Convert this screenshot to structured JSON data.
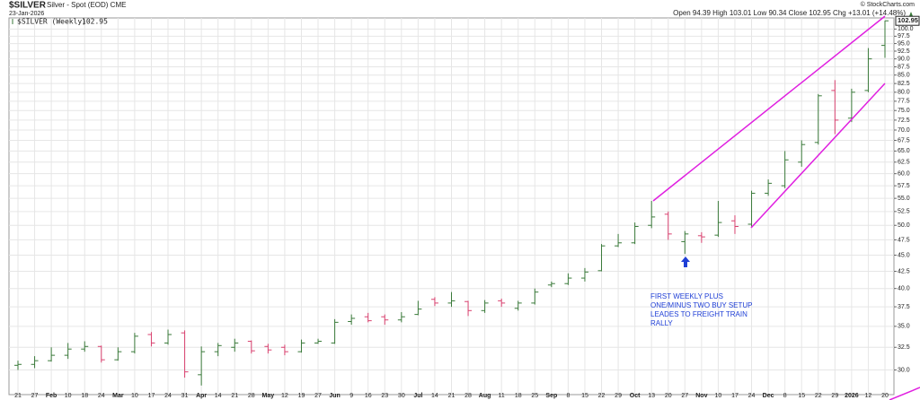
{
  "chart_data": {
    "type": "ohlc",
    "title": "$SILVER",
    "subtitle": "Silver - Spot (EOD) CME",
    "date": "23-Jan-2026",
    "credit": "© StockCharts.com",
    "quote": "Open 94.39 High 103.01 Low 90.34 Close 102.95 Chg +13.01 (+14.48%)",
    "last_label": "102.95",
    "annotation": [
      "FIRST WEEKLY PLUS",
      "ONE/MINUS TWO BUY SETUP",
      "LEADES TO FREIGHT TRAIN",
      "RALLY"
    ],
    "categories": [
      "21",
      "27",
      "Feb",
      "10",
      "18",
      "24",
      "Mar",
      "10",
      "17",
      "24",
      "31",
      "Apr",
      "14",
      "21",
      "28",
      "May",
      "12",
      "19",
      "27",
      "Jun",
      "9",
      "16",
      "23",
      "30",
      "Jul",
      "14",
      "21",
      "28",
      "Aug",
      "11",
      "18",
      "25",
      "Sep",
      "8",
      "15",
      "22",
      "29",
      "Oct",
      "13",
      "20",
      "27",
      "Nov",
      "10",
      "17",
      "24",
      "Dec",
      "8",
      "15",
      "22",
      "29",
      "2026",
      "12",
      "20"
    ],
    "series": [
      {
        "name": "$SILVER (Weekly)",
        "up_color": "#3a7a3a",
        "down_color": "#d9416f",
        "open": [
          30.5,
          30.6,
          31.0,
          31.6,
          32.3,
          32.6,
          31.1,
          32.0,
          34.0,
          33.0,
          34.2,
          29.5,
          32.0,
          32.5,
          33.2,
          32.6,
          32.5,
          32.0,
          33.0,
          33.0,
          35.6,
          36.2,
          36.2,
          35.8,
          36.5,
          38.5,
          38.0,
          38.2,
          37.0,
          38.3,
          37.3,
          38.0,
          40.5,
          40.7,
          41.5,
          42.6,
          46.5,
          47.0,
          50.0,
          52.0,
          47.2,
          48.2,
          48.3,
          50.8,
          50.2,
          56.0,
          57.5,
          62.5,
          67.0,
          80.5,
          73.0,
          80.5,
          94.39
        ],
        "high": [
          31.0,
          31.5,
          32.5,
          33.0,
          33.2,
          32.7,
          32.5,
          34.2,
          34.3,
          34.6,
          34.5,
          32.6,
          33.0,
          33.5,
          33.3,
          32.9,
          32.8,
          33.4,
          33.5,
          35.9,
          36.5,
          36.7,
          36.5,
          36.8,
          38.3,
          38.8,
          39.5,
          38.3,
          38.4,
          38.6,
          38.3,
          40.0,
          41.0,
          42.2,
          43.0,
          46.8,
          48.5,
          50.5,
          54.5,
          52.5,
          49.0,
          48.8,
          54.5,
          51.8,
          56.5,
          58.8,
          65.0,
          67.5,
          79.5,
          83.5,
          81.0,
          93.5,
          103.01
        ],
        "low": [
          30.0,
          30.2,
          30.9,
          31.2,
          32.0,
          30.8,
          31.0,
          31.8,
          32.6,
          32.8,
          29.2,
          28.4,
          31.5,
          32.0,
          31.8,
          31.8,
          31.6,
          31.9,
          32.9,
          32.9,
          35.2,
          35.5,
          35.2,
          35.5,
          36.4,
          37.6,
          37.5,
          36.3,
          36.7,
          37.5,
          37.0,
          37.8,
          40.2,
          40.5,
          41.0,
          42.5,
          46.3,
          46.8,
          49.5,
          47.5,
          45.2,
          47.0,
          48.0,
          48.5,
          49.8,
          55.5,
          57.0,
          61.5,
          66.5,
          69.0,
          72.0,
          80.0,
          90.34
        ],
        "close": [
          30.6,
          31.0,
          31.6,
          32.3,
          32.6,
          31.1,
          32.0,
          33.8,
          33.0,
          34.0,
          29.8,
          32.0,
          32.7,
          33.0,
          32.1,
          32.2,
          32.0,
          33.0,
          33.2,
          35.5,
          36.0,
          35.7,
          35.8,
          36.2,
          37.2,
          38.0,
          38.3,
          37.0,
          38.0,
          38.0,
          38.0,
          39.5,
          40.7,
          41.5,
          42.4,
          46.5,
          47.0,
          49.8,
          51.5,
          48.5,
          48.5,
          48.0,
          50.5,
          49.8,
          56.0,
          58.0,
          63.0,
          66.5,
          79.0,
          72.5,
          80.0,
          90.0,
          102.95
        ]
      }
    ],
    "log_y": true,
    "grid": true,
    "ylim": [
      27.5,
      104
    ],
    "yticks": [
      {
        "value": 30,
        "label": "30.0"
      },
      {
        "value": 32.5,
        "label": "32.5"
      },
      {
        "value": 35,
        "label": "35.0"
      },
      {
        "value": 37.5,
        "label": "37.5"
      },
      {
        "value": 40,
        "label": "40.0"
      },
      {
        "value": 42.5,
        "label": "42.5"
      },
      {
        "value": 45,
        "label": "45.0"
      },
      {
        "value": 47.5,
        "label": "47.5"
      },
      {
        "value": 50,
        "label": "50.0"
      },
      {
        "value": 52.5,
        "label": "52.5"
      },
      {
        "value": 55,
        "label": "55.0"
      },
      {
        "value": 57.5,
        "label": "57.5"
      },
      {
        "value": 60,
        "label": "60.0"
      },
      {
        "value": 62.5,
        "label": "62.5"
      },
      {
        "value": 65,
        "label": "65.0"
      },
      {
        "value": 67.5,
        "label": "67.5"
      },
      {
        "value": 70,
        "label": "70.0"
      },
      {
        "value": 72.5,
        "label": "72.5"
      },
      {
        "value": 75,
        "label": "75.0"
      },
      {
        "value": 77.5,
        "label": "77.5"
      },
      {
        "value": 80,
        "label": "80.0"
      },
      {
        "value": 82.5,
        "label": "82.5"
      },
      {
        "value": 85,
        "label": "85.0"
      },
      {
        "value": 87.5,
        "label": "87.5"
      },
      {
        "value": 90,
        "label": "90.0"
      },
      {
        "value": 92.5,
        "label": "92.5"
      },
      {
        "value": 95,
        "label": "95.0"
      },
      {
        "value": 97.5,
        "label": "97.5"
      },
      {
        "value": 100,
        "label": "100.0"
      }
    ]
  }
}
